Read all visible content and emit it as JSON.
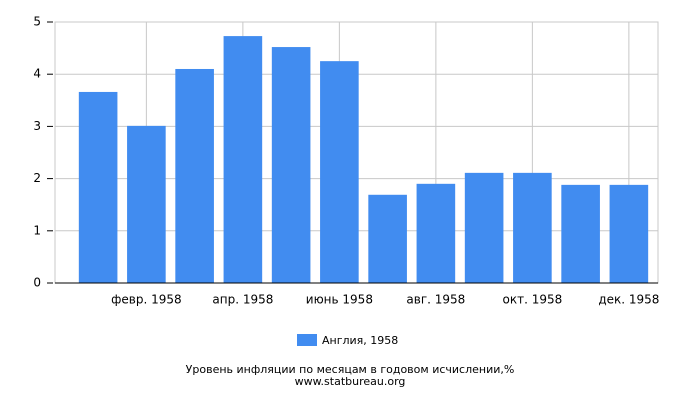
{
  "chart_data": {
    "type": "bar",
    "title": "Уровень инфляции по месяцам в годовом исчислении,%",
    "subtitle": "www.statbureau.org",
    "categories": [
      null,
      "февр. 1958",
      null,
      "апр. 1958",
      null,
      "июнь 1958",
      null,
      "авг. 1958",
      null,
      "окт. 1958",
      null,
      "дек. 1958"
    ],
    "series": [
      {
        "name": "Англия, 1958",
        "color": "#418cf0",
        "values": [
          3.66,
          3.01,
          4.1,
          4.73,
          4.52,
          4.25,
          1.69,
          1.9,
          2.11,
          2.11,
          1.88,
          1.88
        ]
      }
    ],
    "ylim": [
      0,
      5
    ],
    "yticks": [
      0,
      1,
      2,
      3,
      4,
      5
    ],
    "grid": true
  }
}
